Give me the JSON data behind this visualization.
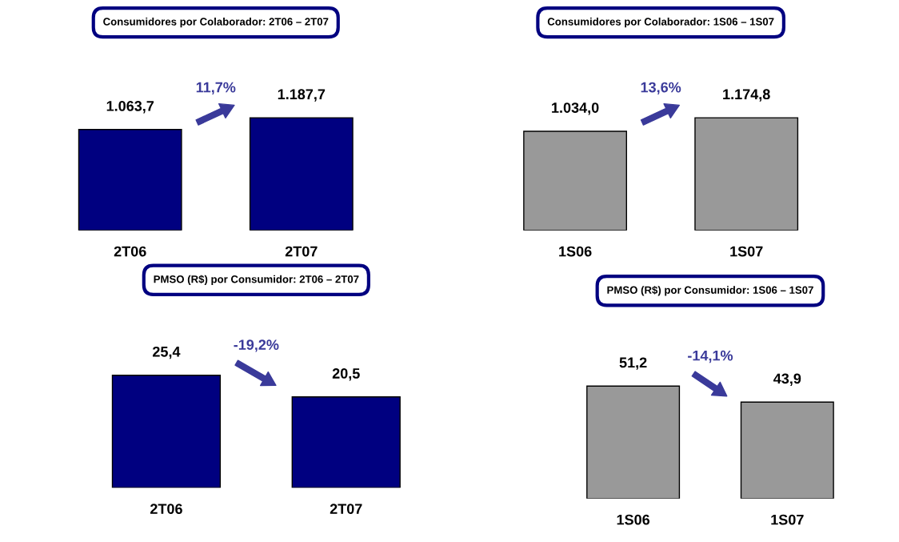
{
  "chart_data": [
    {
      "type": "bar",
      "title": "Consumidores por Colaborador: 2T06 – 2T07",
      "categories": [
        "2T06",
        "2T07"
      ],
      "values": [
        1063.7,
        1187.7
      ],
      "value_labels": [
        "1.063,7",
        "1.187,7"
      ],
      "color": "#000080",
      "annotations": [
        "11,7%"
      ]
    },
    {
      "type": "bar",
      "title": "Consumidores por Colaborador: 1S06 – 1S07",
      "categories": [
        "1S06",
        "1S07"
      ],
      "values": [
        1034.0,
        1174.8
      ],
      "value_labels": [
        "1.034,0",
        "1.174,8"
      ],
      "color": "#999999",
      "annotations": [
        "13,6%"
      ]
    },
    {
      "type": "bar",
      "title": "PMSO (R$) por Consumidor: 2T06 – 2T07",
      "categories": [
        "2T06",
        "2T07"
      ],
      "values": [
        25.4,
        20.5
      ],
      "value_labels": [
        "25,4",
        "20,5"
      ],
      "color": "#000080",
      "annotations": [
        "-19,2%"
      ]
    },
    {
      "type": "bar",
      "title": "PMSO (R$) por Consumidor: 1S06 – 1S07",
      "categories": [
        "1S06",
        "1S07"
      ],
      "values": [
        51.2,
        43.9
      ],
      "value_labels": [
        "51,2",
        "43,9"
      ],
      "color": "#999999",
      "annotations": [
        "-14,1%"
      ]
    }
  ]
}
